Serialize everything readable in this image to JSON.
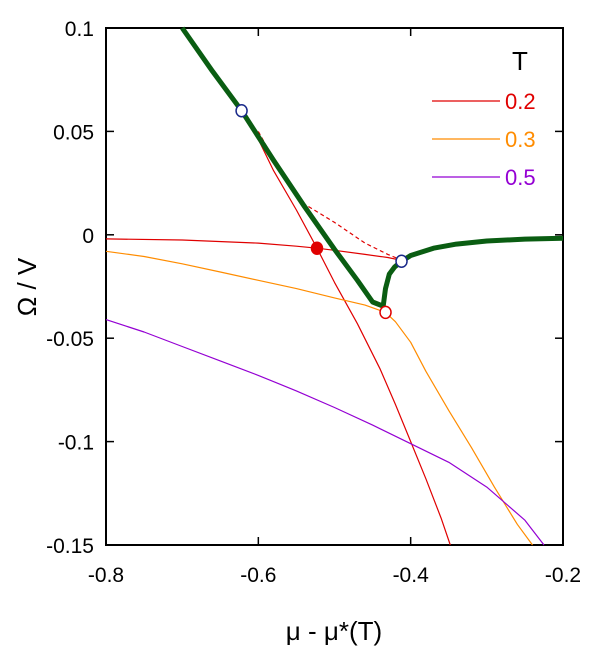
{
  "chart_data": {
    "type": "line",
    "xlabel": "μ - μ*(T)",
    "ylabel": "Ω / V",
    "xlim": [
      -0.8,
      -0.2
    ],
    "ylim": [
      -0.15,
      0.1
    ],
    "xticks": [
      -0.8,
      -0.6,
      -0.4,
      -0.2
    ],
    "xtick_labels": [
      "-0.8",
      "-0.6",
      "-0.4",
      "-0.2"
    ],
    "yticks": [
      0.1,
      0.05,
      0,
      -0.05,
      -0.1,
      -0.15
    ],
    "ytick_labels": [
      "0.1",
      "0.05",
      "0",
      "-0.05",
      "-0.1",
      "-0.15"
    ],
    "grid": false,
    "legend": {
      "title": "T",
      "placement": "top-right",
      "entries": [
        {
          "label": "0.2",
          "color": "#e00000"
        },
        {
          "label": "0.3",
          "color": "#ff8c00"
        },
        {
          "label": "0.5",
          "color": "#9400d3"
        }
      ]
    },
    "series": [
      {
        "name": "0.2",
        "color": "#e00000",
        "branches": [
          {
            "style": "solid",
            "points": [
              [
                -0.8,
                -0.002
              ],
              [
                -0.7,
                -0.0025
              ],
              [
                -0.6,
                -0.004
              ],
              [
                -0.55,
                -0.0055
              ],
              [
                -0.523,
                -0.0065
              ],
              [
                -0.5,
                -0.0075
              ],
              [
                -0.46,
                -0.0095
              ],
              [
                -0.43,
                -0.011
              ],
              [
                -0.41,
                -0.0125
              ]
            ]
          },
          {
            "style": "solid",
            "points": [
              [
                -0.605,
                0.05
              ],
              [
                -0.58,
                0.031
              ],
              [
                -0.55,
                0.012
              ],
              [
                -0.523,
                -0.0065
              ],
              [
                -0.5,
                -0.023
              ],
              [
                -0.47,
                -0.043
              ],
              [
                -0.44,
                -0.065
              ],
              [
                -0.42,
                -0.082
              ],
              [
                -0.4,
                -0.1
              ],
              [
                -0.38,
                -0.118
              ],
              [
                -0.36,
                -0.137
              ],
              [
                -0.348,
                -0.15
              ]
            ]
          },
          {
            "style": "dashed",
            "points": [
              [
                -0.6,
                0.05
              ],
              [
                -0.57,
                0.03
              ],
              [
                -0.54,
                0.015
              ],
              [
                -0.5,
                0.006
              ],
              [
                -0.46,
                -0.004
              ],
              [
                -0.43,
                -0.0095
              ],
              [
                -0.41,
                -0.0125
              ]
            ]
          }
        ]
      },
      {
        "name": "0.3",
        "color": "#ff8c00",
        "branches": [
          {
            "style": "solid",
            "points": [
              [
                -0.8,
                -0.008
              ],
              [
                -0.75,
                -0.0105
              ],
              [
                -0.7,
                -0.014
              ],
              [
                -0.65,
                -0.018
              ],
              [
                -0.6,
                -0.022
              ],
              [
                -0.55,
                -0.026
              ],
              [
                -0.5,
                -0.0305
              ],
              [
                -0.46,
                -0.034
              ],
              [
                -0.433,
                -0.0375
              ],
              [
                -0.42,
                -0.042
              ],
              [
                -0.4,
                -0.052
              ],
              [
                -0.38,
                -0.066
              ],
              [
                -0.35,
                -0.085
              ],
              [
                -0.32,
                -0.103
              ],
              [
                -0.29,
                -0.122
              ],
              [
                -0.26,
                -0.14
              ],
              [
                -0.24,
                -0.15
              ]
            ]
          }
        ]
      },
      {
        "name": "0.5",
        "color": "#9400d3",
        "branches": [
          {
            "style": "solid",
            "points": [
              [
                -0.8,
                -0.041
              ],
              [
                -0.75,
                -0.047
              ],
              [
                -0.7,
                -0.054
              ],
              [
                -0.65,
                -0.061
              ],
              [
                -0.6,
                -0.068
              ],
              [
                -0.55,
                -0.0755
              ],
              [
                -0.5,
                -0.0835
              ],
              [
                -0.45,
                -0.092
              ],
              [
                -0.4,
                -0.101
              ],
              [
                -0.35,
                -0.11
              ],
              [
                -0.3,
                -0.122
              ],
              [
                -0.25,
                -0.138
              ],
              [
                -0.225,
                -0.15
              ]
            ]
          }
        ]
      },
      {
        "name": "",
        "color": "#0a5d12",
        "width": 5,
        "branches": [
          {
            "style": "solid",
            "points": [
              [
                -0.7,
                0.1
              ],
              [
                -0.66,
                0.079
              ],
              [
                -0.622,
                0.06
              ],
              [
                -0.58,
                0.036
              ],
              [
                -0.54,
                0.014
              ],
              [
                -0.5,
                -0.007
              ],
              [
                -0.47,
                -0.022
              ],
              [
                -0.45,
                -0.0325
              ],
              [
                -0.436,
                -0.0345
              ],
              [
                -0.436,
                -0.0345
              ],
              [
                -0.433,
                -0.026
              ],
              [
                -0.428,
                -0.019
              ],
              [
                -0.421,
                -0.0155
              ],
              [
                -0.412,
                -0.0128
              ],
              [
                -0.4,
                -0.01
              ],
              [
                -0.37,
                -0.0065
              ],
              [
                -0.34,
                -0.0045
              ],
              [
                -0.3,
                -0.003
              ],
              [
                -0.25,
                -0.0021
              ],
              [
                -0.2,
                -0.0017
              ]
            ]
          }
        ]
      }
    ],
    "markers": [
      {
        "x": -0.622,
        "y": 0.06,
        "fill": "#ffffff",
        "stroke": "#1a2a8a"
      },
      {
        "x": -0.412,
        "y": -0.0128,
        "fill": "#ffffff",
        "stroke": "#1a2a8a"
      },
      {
        "x": -0.523,
        "y": -0.0065,
        "fill": "#e00000",
        "stroke": "#e00000"
      },
      {
        "x": -0.433,
        "y": -0.0375,
        "fill": "#ffffff",
        "stroke": "#e00000"
      }
    ]
  }
}
